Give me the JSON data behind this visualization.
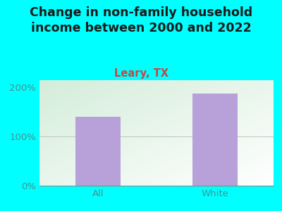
{
  "categories": [
    "All",
    "White"
  ],
  "values": [
    140,
    188
  ],
  "bar_color": "#b8a0d8",
  "title": "Change in non-family household\nincome between 2000 and 2022",
  "subtitle": "Leary, TX",
  "ylim": [
    0,
    215
  ],
  "yticks": [
    0,
    100,
    200
  ],
  "ytick_labels": [
    "0%",
    "100%",
    "200%"
  ],
  "bg_color": "#00ffff",
  "title_color": "#1a1a1a",
  "subtitle_color": "#cc4444",
  "tick_color": "#4a9090",
  "title_fontsize": 12.5,
  "subtitle_fontsize": 10.5,
  "tick_fontsize": 9.5,
  "bar_width": 0.38
}
